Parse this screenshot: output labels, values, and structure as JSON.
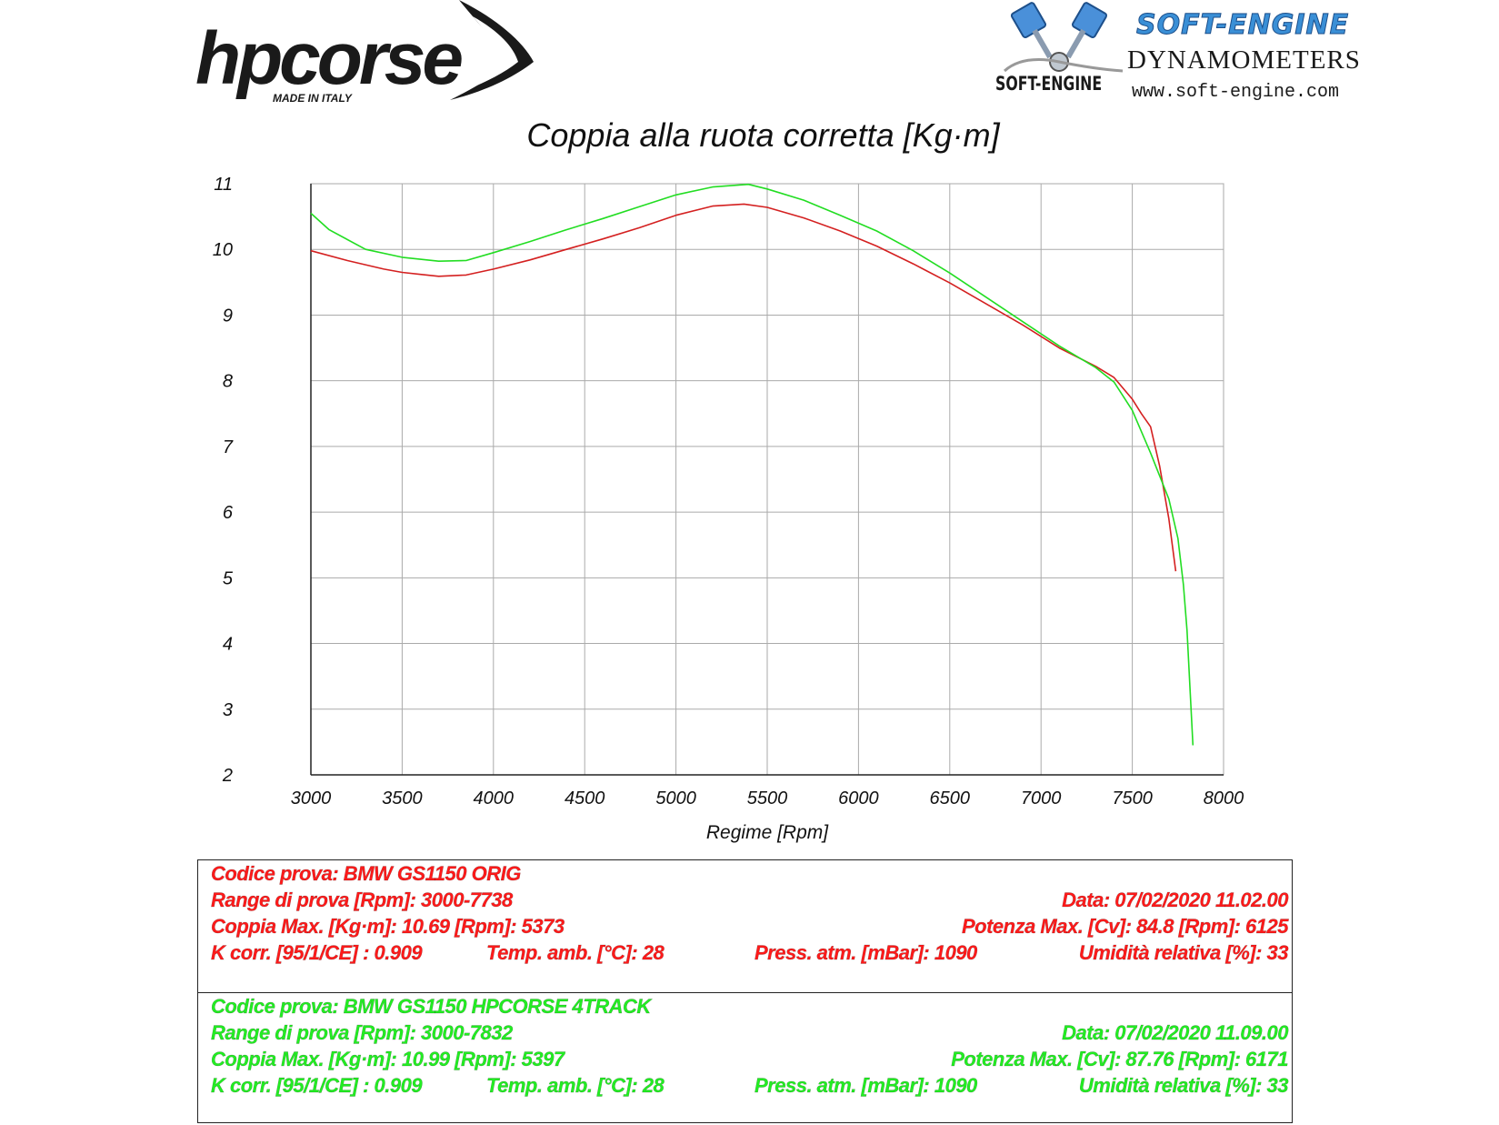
{
  "logos": {
    "hpcorse_text": "hpcorse",
    "hpcorse_tag": "MADE IN ITALY",
    "softengine_title": "SOFT-ENGINE",
    "softengine_subtitle": "DYNAMOMETERS",
    "softengine_url": "www.soft-engine.com",
    "softengine_small": "SOFT-ENGINE"
  },
  "chart_data": {
    "type": "line",
    "title": "Coppia alla ruota corretta [Kg·m]",
    "xlabel": "Regime [Rpm]",
    "ylabel": "",
    "xlim": [
      3000,
      8000
    ],
    "ylim": [
      2,
      11
    ],
    "xticks": [
      3000,
      3500,
      4000,
      4500,
      5000,
      5500,
      6000,
      6500,
      7000,
      7500,
      8000
    ],
    "yticks": [
      2,
      3,
      4,
      5,
      6,
      7,
      8,
      9,
      10,
      11
    ],
    "grid": true,
    "series": [
      {
        "color": "#d42020",
        "x": [
          3000,
          3200,
          3400,
          3500,
          3600,
          3700,
          3850,
          4000,
          4200,
          4400,
          4600,
          4800,
          5000,
          5200,
          5373,
          5500,
          5700,
          5900,
          6100,
          6300,
          6500,
          6700,
          6900,
          7100,
          7300,
          7400,
          7500,
          7550,
          7600,
          7650,
          7700,
          7738
        ],
        "y": [
          9.98,
          9.83,
          9.7,
          9.65,
          9.62,
          9.59,
          9.61,
          9.7,
          9.84,
          10.0,
          10.16,
          10.33,
          10.52,
          10.66,
          10.69,
          10.64,
          10.48,
          10.28,
          10.05,
          9.78,
          9.49,
          9.17,
          8.85,
          8.5,
          8.22,
          8.05,
          7.72,
          7.5,
          7.3,
          6.7,
          5.9,
          5.1
        ]
      },
      {
        "color": "#22dd22",
        "x": [
          3000,
          3100,
          3300,
          3500,
          3700,
          3850,
          4000,
          4200,
          4400,
          4600,
          4800,
          5000,
          5200,
          5397,
          5500,
          5700,
          5900,
          6100,
          6300,
          6500,
          6700,
          6900,
          7100,
          7300,
          7400,
          7500,
          7600,
          7700,
          7750,
          7780,
          7800,
          7832
        ],
        "y": [
          10.55,
          10.3,
          10.0,
          9.88,
          9.82,
          9.83,
          9.95,
          10.12,
          10.3,
          10.47,
          10.65,
          10.83,
          10.95,
          10.99,
          10.92,
          10.75,
          10.52,
          10.28,
          9.98,
          9.64,
          9.27,
          8.9,
          8.53,
          8.2,
          7.98,
          7.55,
          6.9,
          6.2,
          5.6,
          4.9,
          4.2,
          2.45
        ]
      }
    ]
  },
  "tests": [
    {
      "color": "#ff1a1a",
      "codice": "Codice prova: BMW GS1150 ORIG",
      "range": "Range di prova [Rpm]: 3000-7738",
      "data": "Data: 07/02/2020   11.02.00",
      "coppia": "Coppia Max. [Kg·m]: 10.69   [Rpm]: 5373",
      "potenza": "Potenza Max. [Cv]: 84.8   [Rpm]: 6125",
      "kcorr": "K corr. [95/1/CE] : 0.909",
      "temp": "Temp. amb. [°C]: 28",
      "press": "Press. atm. [mBar]: 1090",
      "umid": "Umidità relativa [%]: 33"
    },
    {
      "color": "#22ee22",
      "codice": "Codice prova: BMW GS1150 HPCORSE 4TRACK",
      "range": "Range di prova [Rpm]: 3000-7832",
      "data": "Data: 07/02/2020   11.09.00",
      "coppia": "Coppia Max. [Kg·m]: 10.99   [Rpm]: 5397",
      "potenza": "Potenza Max. [Cv]: 87.76   [Rpm]: 6171",
      "kcorr": "K corr. [95/1/CE] : 0.909",
      "temp": "Temp. amb. [°C]: 28",
      "press": "Press. atm. [mBar]: 1090",
      "umid": "Umidità relativa [%]: 33"
    }
  ]
}
